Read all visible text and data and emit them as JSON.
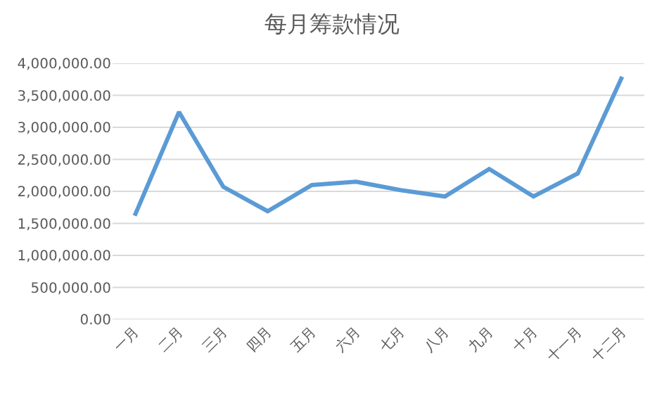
{
  "chart_data": {
    "type": "line",
    "title": "每月筹款情况",
    "categories": [
      "一月",
      "二月",
      "三月",
      "四月",
      "五月",
      "六月",
      "七月",
      "八月",
      "九月",
      "十月",
      "十一月",
      "十二月"
    ],
    "series": [
      {
        "color": "#5b9bd5",
        "values": [
          1620000,
          3240000,
          2070000,
          1690000,
          2100000,
          2150000,
          2020000,
          1920000,
          2350000,
          1920000,
          2280000,
          3790000
        ]
      }
    ],
    "ylim": [
      0,
      4000000
    ],
    "yticks": [
      {
        "value": 0,
        "label": "0.00"
      },
      {
        "value": 500000,
        "label": "500,000.00"
      },
      {
        "value": 1000000,
        "label": "1,000,000.00"
      },
      {
        "value": 1500000,
        "label": "1,500,000.00"
      },
      {
        "value": 2000000,
        "label": "2,000,000.00"
      },
      {
        "value": 2500000,
        "label": "2,500,000.00"
      },
      {
        "value": 3000000,
        "label": "3,000,000.00"
      },
      {
        "value": 3500000,
        "label": "3,500,000.00"
      },
      {
        "value": 4000000,
        "label": "4,000,000.00"
      }
    ],
    "grid": "y",
    "marker": "none",
    "line_style": "solid"
  }
}
